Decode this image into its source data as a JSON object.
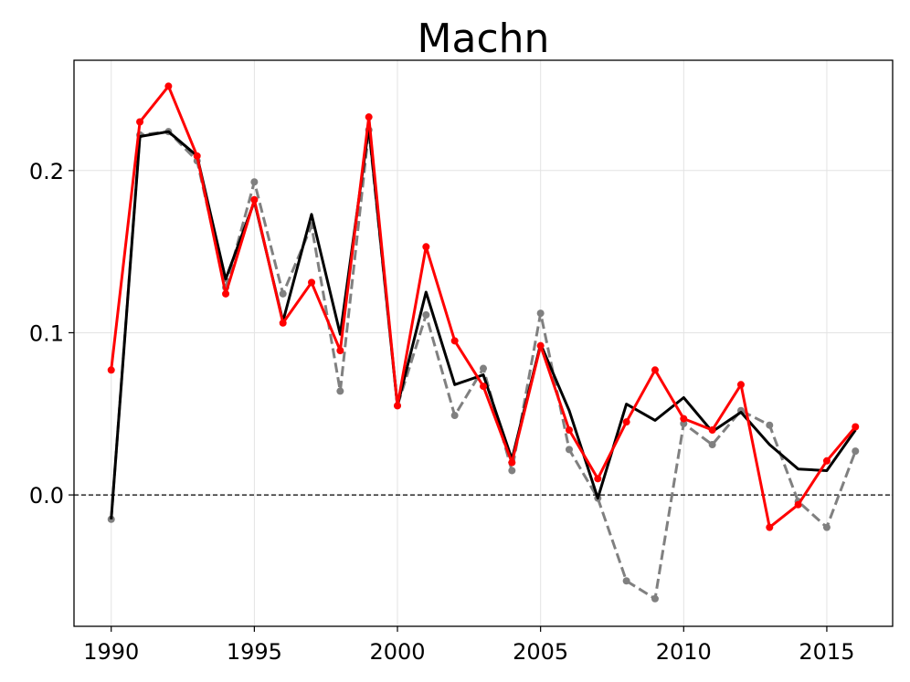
{
  "chart_data": {
    "type": "line",
    "title": "Machn",
    "xlabel": "",
    "ylabel": "",
    "xlim": [
      1988.7,
      2017.3
    ],
    "ylim": [
      -0.081,
      0.268
    ],
    "x_ticks": [
      1990,
      1995,
      2000,
      2005,
      2010,
      2015
    ],
    "y_ticks": [
      0.0,
      0.1,
      0.2
    ],
    "y_tick_labels": [
      "0.0",
      "0.1",
      "0.2"
    ],
    "grid": true,
    "reference_line": {
      "y": 0.0,
      "style": "dashed",
      "color": "#000000"
    },
    "x": [
      1990,
      1991,
      1992,
      1993,
      1994,
      1995,
      1996,
      1997,
      1998,
      1999,
      2000,
      2001,
      2002,
      2003,
      2004,
      2005,
      2006,
      2007,
      2008,
      2009,
      2010,
      2011,
      2012,
      2013,
      2014,
      2015,
      2016
    ],
    "series": [
      {
        "color": "#808080",
        "style": "dashed",
        "markers": true,
        "values": [
          -0.015,
          0.222,
          0.224,
          0.206,
          0.128,
          0.193,
          0.124,
          0.166,
          0.064,
          0.225,
          0.055,
          0.111,
          0.049,
          0.078,
          0.015,
          0.112,
          0.028,
          -0.002,
          -0.053,
          -0.064,
          0.044,
          0.031,
          0.052,
          0.043,
          -0.004,
          -0.02,
          0.027
        ]
      },
      {
        "color": "#000000",
        "style": "solid",
        "markers": false,
        "values": [
          -0.015,
          0.221,
          0.224,
          0.209,
          0.133,
          0.181,
          0.107,
          0.173,
          0.099,
          0.227,
          0.055,
          0.125,
          0.068,
          0.074,
          0.022,
          0.093,
          0.052,
          -0.002,
          0.056,
          0.046,
          0.06,
          0.039,
          0.051,
          0.031,
          0.016,
          0.015,
          0.04
        ]
      },
      {
        "color": "#ff0000",
        "style": "solid",
        "markers": true,
        "values": [
          0.077,
          0.23,
          0.252,
          0.209,
          0.124,
          0.182,
          0.106,
          0.131,
          0.089,
          0.233,
          0.055,
          0.153,
          0.095,
          0.067,
          0.02,
          0.092,
          0.04,
          0.01,
          0.045,
          0.077,
          0.047,
          0.04,
          0.068,
          -0.02,
          -0.006,
          0.021,
          0.042
        ]
      }
    ]
  }
}
